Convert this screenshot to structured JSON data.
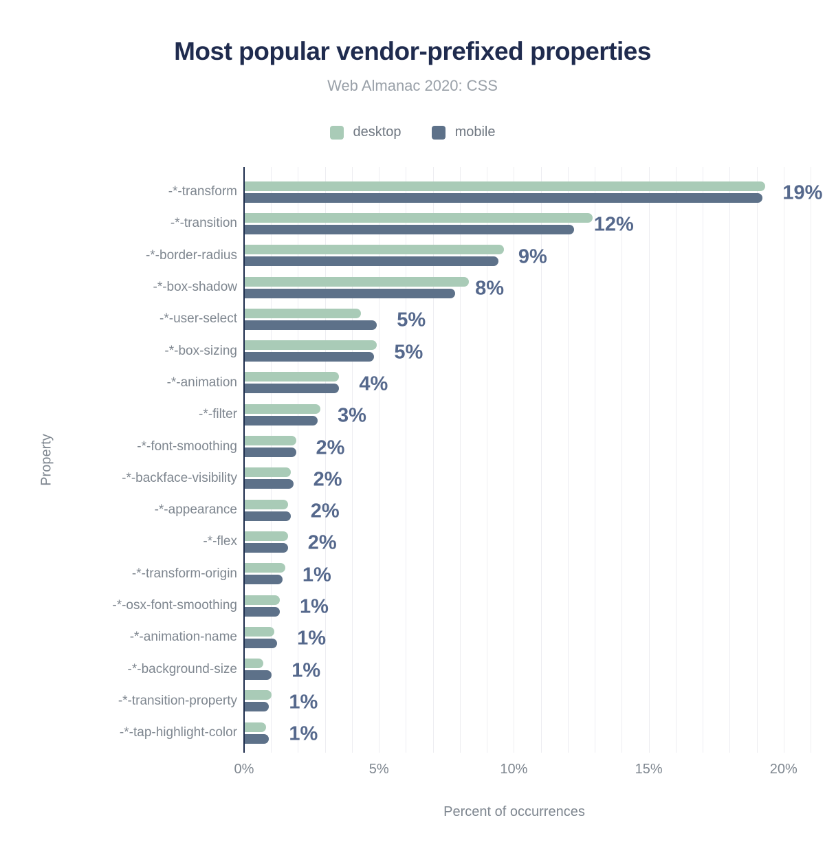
{
  "title": "Most popular vendor-prefixed properties",
  "subtitle": "Web Almanac 2020: CSS",
  "legend": [
    {
      "label": "desktop",
      "color": "#a9cbb7"
    },
    {
      "label": "mobile",
      "color": "#5d7189"
    }
  ],
  "colors": {
    "desktop": "#a9cbb7",
    "mobile": "#5d7189",
    "title": "#1f2b4e",
    "subtitle": "#9aa1a9",
    "axis_text": "#7e868f",
    "value_label": "#55688c",
    "axis_line": "#1b2b4b",
    "gridline": "#ededf1"
  },
  "chart_data": {
    "type": "bar",
    "orientation": "horizontal",
    "title": "Most popular vendor-prefixed properties",
    "subtitle": "Web Almanac 2020: CSS",
    "xlabel": "Percent of occurrences",
    "ylabel": "Property",
    "xlim": [
      0,
      21
    ],
    "grid": "vertical, every 1%",
    "legend_position": "top",
    "xticks": [
      {
        "value": 0,
        "label": "0%"
      },
      {
        "value": 5,
        "label": "5%"
      },
      {
        "value": 10,
        "label": "10%"
      },
      {
        "value": 15,
        "label": "15%"
      },
      {
        "value": 20,
        "label": "20%"
      }
    ],
    "categories": [
      "-*-transform",
      "-*-transition",
      "-*-border-radius",
      "-*-box-shadow",
      "-*-user-select",
      "-*-box-sizing",
      "-*-animation",
      "-*-filter",
      "-*-font-smoothing",
      "-*-backface-visibility",
      "-*-appearance",
      "-*-flex",
      "-*-transform-origin",
      "-*-osx-font-smoothing",
      "-*-animation-name",
      "-*-background-size",
      "-*-transition-property",
      "-*-tap-highlight-color"
    ],
    "series": [
      {
        "name": "desktop",
        "values": [
          19.3,
          12.9,
          9.6,
          8.3,
          4.3,
          4.9,
          3.5,
          2.8,
          1.9,
          1.7,
          1.6,
          1.6,
          1.5,
          1.3,
          1.1,
          0.7,
          1.0,
          0.8
        ]
      },
      {
        "name": "mobile",
        "values": [
          19.2,
          12.2,
          9.4,
          7.8,
          4.9,
          4.8,
          3.5,
          2.7,
          1.9,
          1.8,
          1.7,
          1.6,
          1.4,
          1.3,
          1.2,
          1.0,
          0.9,
          0.9
        ]
      }
    ],
    "value_labels": [
      "19%",
      "12%",
      "9%",
      "8%",
      "5%",
      "5%",
      "4%",
      "3%",
      "2%",
      "2%",
      "2%",
      "2%",
      "1%",
      "1%",
      "1%",
      "1%",
      "1%",
      "1%"
    ]
  }
}
